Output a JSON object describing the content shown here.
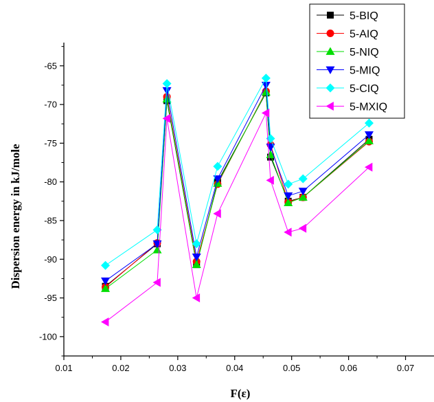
{
  "chart_data": {
    "type": "line",
    "title": "",
    "xlabel": "F(ε)",
    "ylabel": "Dispersion energy in kJ/mole",
    "xlim": [
      0.01,
      0.075
    ],
    "ylim": [
      -102.5,
      -62
    ],
    "xticks": [
      "0.01",
      "0.02",
      "0.03",
      "0.04",
      "0.05",
      "0.06",
      "0.07"
    ],
    "yticks": [
      "-65",
      "-70",
      "-75",
      "-80",
      "-85",
      "-90",
      "-95",
      "-100"
    ],
    "grid": false,
    "legend_position": "top-right",
    "x": [
      0.0173,
      0.0264,
      0.0281,
      0.0333,
      0.037,
      0.0455,
      0.0463,
      0.0494,
      0.052,
      0.0636
    ],
    "series": [
      {
        "name": "5-BIQ",
        "color": "#000000",
        "marker": "square",
        "values": [
          -93.5,
          -88.0,
          -69.5,
          -90.7,
          -80.0,
          -68.5,
          -76.8,
          -82.5,
          -82.0,
          -74.5
        ]
      },
      {
        "name": "5-AIQ",
        "color": "#ff0000",
        "marker": "circle",
        "values": [
          -93.6,
          -87.9,
          -69.0,
          -90.3,
          -80.3,
          -68.3,
          -75.2,
          -82.6,
          -82.0,
          -74.8
        ]
      },
      {
        "name": "5-NIQ",
        "color": "#00dd00",
        "marker": "triangle-up",
        "values": [
          -93.8,
          -88.8,
          -69.3,
          -90.7,
          -80.2,
          -68.4,
          -76.5,
          -82.7,
          -82.0,
          -74.7
        ]
      },
      {
        "name": "5-MIQ",
        "color": "#0000ff",
        "marker": "triangle-down",
        "values": [
          -92.8,
          -88.0,
          -68.2,
          -89.7,
          -79.6,
          -67.5,
          -75.5,
          -81.8,
          -81.2,
          -73.9
        ]
      },
      {
        "name": "5-CIQ",
        "color": "#00ffff",
        "marker": "diamond",
        "values": [
          -90.8,
          -86.2,
          -67.3,
          -88.0,
          -78.0,
          -66.6,
          -74.4,
          -80.3,
          -79.6,
          -72.4
        ]
      },
      {
        "name": "5-MXIQ",
        "color": "#ff00ff",
        "marker": "triangle-left",
        "values": [
          -98.1,
          -93.0,
          -71.8,
          -95.0,
          -84.1,
          -71.1,
          -79.8,
          -86.5,
          -86.0,
          -78.1
        ]
      }
    ]
  }
}
